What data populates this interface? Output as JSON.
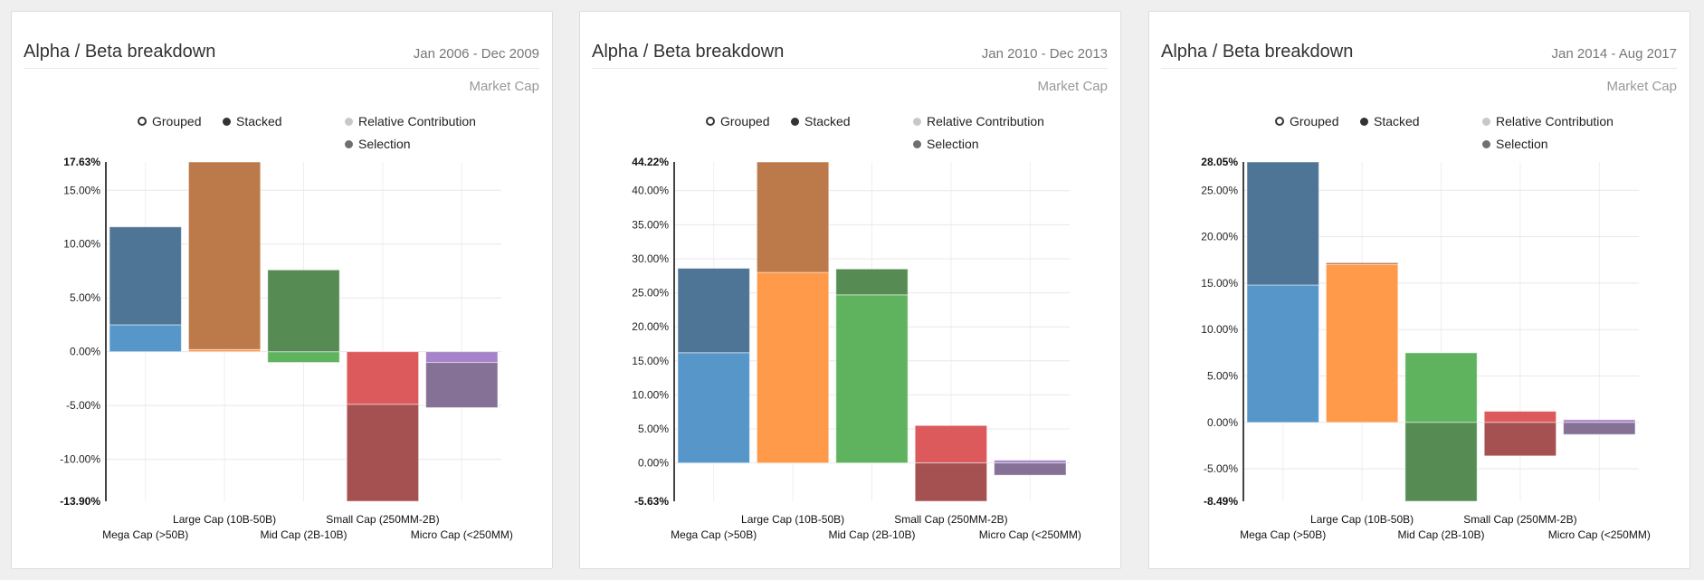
{
  "legend": {
    "grouped": "Grouped",
    "stacked": "Stacked",
    "relative": "Relative Contribution",
    "selection": "Selection"
  },
  "colors": {
    "relative": [
      "#5796c9",
      "#ff9a4a",
      "#5fb35f",
      "#dc5a5c",
      "#a783c9"
    ],
    "selection": [
      "#4e7496",
      "#bc7a4a",
      "#568c53",
      "#a55152",
      "#857196"
    ]
  },
  "cards": [
    {
      "title": "Alpha / Beta breakdown",
      "date": "Jan 2006 - Dec 2009",
      "subtitle": "Market Cap"
    },
    {
      "title": "Alpha / Beta breakdown",
      "date": "Jan 2010 - Dec 2013",
      "subtitle": "Market Cap"
    },
    {
      "title": "Alpha / Beta breakdown",
      "date": "Jan 2014 - Aug 2017",
      "subtitle": "Market Cap"
    }
  ],
  "chart_data": [
    {
      "type": "bar",
      "stacked": true,
      "title": "Alpha / Beta breakdown",
      "xlabel": "Market Cap",
      "categories": [
        "Mega Cap (>50B)",
        "Large Cap (10B-50B)",
        "Mid Cap (2B-10B)",
        "Small Cap (250MM-2B)",
        "Micro Cap (<250MM)"
      ],
      "series": [
        {
          "name": "Relative Contribution",
          "values": [
            2.5,
            0.2,
            -1.0,
            -4.9,
            -1.0
          ]
        },
        {
          "name": "Selection",
          "values": [
            9.1,
            17.43,
            7.6,
            -9.0,
            -4.2
          ]
        }
      ],
      "ylim": [
        -13.9,
        17.63
      ],
      "yticks": [
        15,
        10,
        5,
        0,
        -5,
        -10
      ],
      "ylim_labels": [
        "17.63%",
        "-13.90%"
      ],
      "ytick_labels": [
        "15.00%",
        "10.00%",
        "5.00%",
        "0.00%",
        "-5.00%",
        "-10.00%"
      ]
    },
    {
      "type": "bar",
      "stacked": true,
      "title": "Alpha / Beta breakdown",
      "xlabel": "Market Cap",
      "categories": [
        "Mega Cap (>50B)",
        "Large Cap (10B-50B)",
        "Mid Cap (2B-10B)",
        "Small Cap (250MM-2B)",
        "Micro Cap (<250MM)"
      ],
      "series": [
        {
          "name": "Relative Contribution",
          "values": [
            16.2,
            28.0,
            24.7,
            5.5,
            0.4
          ]
        },
        {
          "name": "Selection",
          "values": [
            12.4,
            16.22,
            3.8,
            -5.63,
            -1.8
          ]
        }
      ],
      "ylim": [
        -5.63,
        44.22
      ],
      "yticks": [
        40,
        35,
        30,
        25,
        20,
        15,
        10,
        5,
        0
      ],
      "ylim_labels": [
        "44.22%",
        "-5.63%"
      ],
      "ytick_labels": [
        "40.00%",
        "35.00%",
        "30.00%",
        "25.00%",
        "20.00%",
        "15.00%",
        "10.00%",
        "5.00%",
        "0.00%"
      ]
    },
    {
      "type": "bar",
      "stacked": true,
      "title": "Alpha / Beta breakdown",
      "xlabel": "Market Cap",
      "categories": [
        "Mega Cap (>50B)",
        "Large Cap (10B-50B)",
        "Mid Cap (2B-10B)",
        "Small Cap (250MM-2B)",
        "Micro Cap (<250MM)"
      ],
      "series": [
        {
          "name": "Relative Contribution",
          "values": [
            14.8,
            17.0,
            7.5,
            1.2,
            0.3
          ]
        },
        {
          "name": "Selection",
          "values": [
            13.25,
            0.2,
            -8.49,
            -3.6,
            -1.3
          ]
        }
      ],
      "ylim": [
        -8.49,
        28.05
      ],
      "yticks": [
        25,
        20,
        15,
        10,
        5,
        0,
        -5
      ],
      "ylim_labels": [
        "28.05%",
        "-8.49%"
      ],
      "ytick_labels": [
        "25.00%",
        "20.00%",
        "15.00%",
        "10.00%",
        "5.00%",
        "0.00%",
        "-5.00%"
      ]
    }
  ]
}
